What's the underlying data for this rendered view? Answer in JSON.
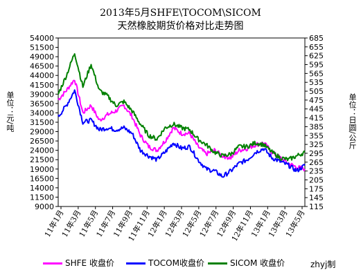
{
  "title_line1": "2013年5月SHFE\\TOCOM\\SICOM",
  "title_line2": "天然橡胶期货价格对比走势图",
  "credit": "zhyj制",
  "colors": {
    "shfe": "#ff00ff",
    "tocom": "#0000ff",
    "sicom": "#008000",
    "plot_bg": "#ffffff",
    "frame": "#000000"
  },
  "chart_data": {
    "type": "line",
    "ylabel_left": "单位：元/吨",
    "ylabel_right": "单位：日圆/公斤",
    "y_left_ticks": [
      "54000",
      "51500",
      "49000",
      "46500",
      "44000",
      "41500",
      "39000",
      "36500",
      "34000",
      "31500",
      "29000",
      "26500",
      "24000",
      "21500",
      "19000",
      "16500",
      "14000",
      "11500",
      "9000"
    ],
    "y_right_ticks": [
      "685",
      "655",
      "625",
      "595",
      "565",
      "535",
      "505",
      "475",
      "445",
      "415",
      "385",
      "355",
      "325",
      "295",
      "265",
      "235",
      "205",
      "175",
      "145",
      "115"
    ],
    "ylim_left": [
      9000,
      54000
    ],
    "ylim_right": [
      115,
      685
    ],
    "x_ticks": [
      "11年1月",
      "11年3月",
      "11年5月",
      "11年7月",
      "11年9月",
      "11年11月",
      "12年1月",
      "12年3月",
      "12年5月",
      "12年7月",
      "12年9月",
      "12年11月",
      "13年1月",
      "13年3月",
      "13年5月"
    ],
    "x_index_range": [
      0,
      30
    ],
    "legend": [
      {
        "key": "shfe",
        "label": "SHFE 收盘价"
      },
      {
        "key": "tocom",
        "label": "TOCOM收盘价"
      },
      {
        "key": "sicom",
        "label": "SICOM 收盘价"
      }
    ],
    "series": [
      {
        "name": "SHFE 收盘价",
        "key": "shfe",
        "axis": "left",
        "x": [
          0,
          1,
          2,
          3,
          4,
          5,
          6,
          7,
          8,
          9,
          10,
          11,
          12,
          13,
          14,
          15,
          16,
          17,
          18,
          19,
          20,
          21,
          22,
          23,
          24,
          25,
          26,
          27,
          28,
          29,
          30
        ],
        "y": [
          37500,
          40000,
          43000,
          34000,
          36000,
          32000,
          33500,
          34500,
          36000,
          33000,
          28000,
          25000,
          24000,
          26500,
          30000,
          28500,
          28500,
          25000,
          23000,
          24000,
          22500,
          22000,
          24000,
          24500,
          25500,
          26000,
          23500,
          22000,
          20500,
          19500,
          19000
        ]
      },
      {
        "name": "TOCOM收盘价",
        "key": "tocom",
        "axis": "left",
        "x": [
          0,
          1,
          2,
          3,
          4,
          5,
          6,
          7,
          8,
          9,
          10,
          11,
          12,
          13,
          14,
          15,
          16,
          17,
          18,
          19,
          20,
          21,
          22,
          23,
          24,
          25,
          26,
          27,
          28,
          29,
          30
        ],
        "y": [
          33000,
          36000,
          40000,
          31500,
          32000,
          29500,
          30000,
          29500,
          30000,
          28500,
          24000,
          22500,
          21500,
          23500,
          26000,
          24500,
          25000,
          21500,
          19000,
          18500,
          17000,
          18500,
          20500,
          21500,
          23500,
          24500,
          22000,
          21000,
          20000,
          18500,
          20000
        ]
      },
      {
        "name": "SICOM 收盘价",
        "key": "sicom",
        "axis": "left",
        "x": [
          0,
          1,
          2,
          3,
          4,
          5,
          6,
          7,
          8,
          9,
          10,
          11,
          12,
          13,
          14,
          15,
          16,
          17,
          18,
          19,
          20,
          21,
          22,
          23,
          24,
          25,
          26,
          27,
          28,
          29,
          30
        ],
        "y": [
          39000,
          44000,
          50000,
          41000,
          47000,
          40000,
          38500,
          36000,
          37000,
          34500,
          31000,
          28000,
          27000,
          30000,
          31000,
          30000,
          29500,
          27000,
          25500,
          23500,
          22500,
          23000,
          25000,
          25000,
          26000,
          25500,
          23500,
          22000,
          21500,
          22500,
          23500
        ]
      }
    ]
  }
}
